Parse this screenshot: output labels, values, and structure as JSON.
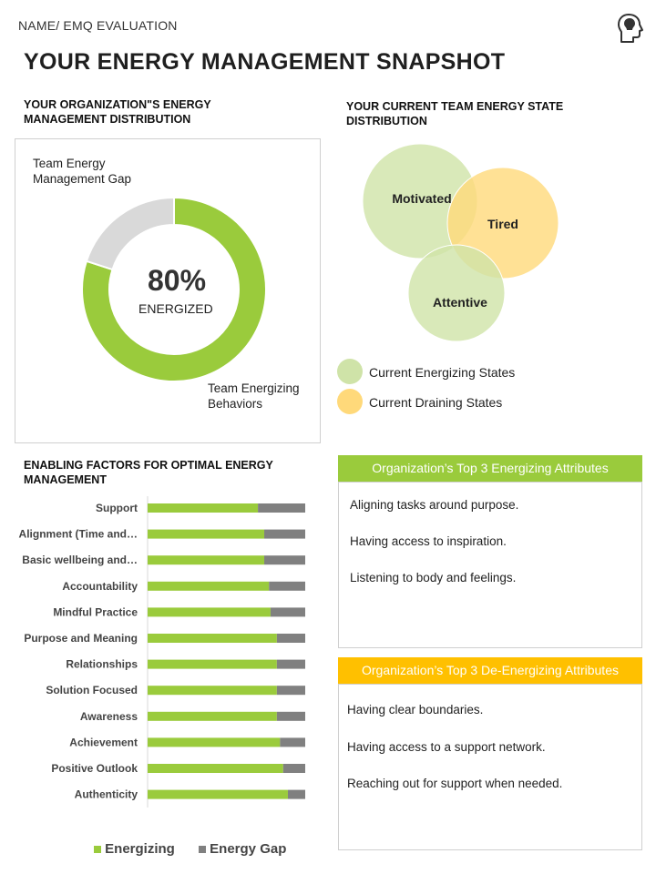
{
  "header": {
    "breadcrumb": "NAME/  EMQ EVALUATION",
    "title": "YOUR ENERGY MANAGEMENT SNAPSHOT",
    "head_icon": "head-profile-icon"
  },
  "colors": {
    "green": "#9ACB3C",
    "gray": "#808080",
    "light_gray": "#D9D9D9",
    "light_green": "#CFE3A8",
    "light_yellow": "#FFD97A",
    "yellow_header": "#FFC000"
  },
  "distribution": {
    "section_title": "YOUR ORGANIZATION\"S ENERGY MANAGEMENT DISTRIBUTION",
    "gap_label": "Team Energy Management Gap",
    "behaviors_label": "Team Energizing Behaviors",
    "percent_text": "80%",
    "center_label": "ENERGIZED"
  },
  "team_state": {
    "section_title": "YOUR CURRENT TEAM ENERGY STATE DISTRIBUTION",
    "legend": [
      {
        "label": "Current Energizing States",
        "color": "#CFE3A8"
      },
      {
        "label": "Current Draining States",
        "color": "#FFD97A"
      }
    ]
  },
  "factors": {
    "section_title": "ENABLING FACTORS FOR OPTIMAL ENERGY MANAGEMENT",
    "legend_energizing": "Energizing",
    "legend_gap": "Energy Gap"
  },
  "energizing_attributes": {
    "header": "Organization’s  Top 3 Energizing Attributes",
    "items": [
      "Aligning tasks around purpose.",
      "Having access to inspiration.",
      "Listening to body and feelings."
    ]
  },
  "deenergizing_attributes": {
    "header": "Organization’s Top 3 De-Energizing Attributes",
    "items": [
      "Having clear boundaries.",
      "Having access to a support network.",
      "Reaching out for support when needed."
    ]
  },
  "chart_data": [
    {
      "type": "pie",
      "title": "YOUR ORGANIZATION\"S ENERGY MANAGEMENT DISTRIBUTION",
      "labels": [
        "Team Energizing Behaviors",
        "Team Energy Management Gap"
      ],
      "values": [
        80,
        20
      ],
      "colors": [
        "#9ACB3C",
        "#D9D9D9"
      ],
      "donut": true,
      "center_text": "80% ENERGIZED"
    },
    {
      "type": "scatter",
      "title": "YOUR CURRENT TEAM ENERGY STATE DISTRIBUTION",
      "note": "Venn-style bubble diagram",
      "bubbles": [
        {
          "label": "Motivated",
          "group": "Current Energizing States",
          "color": "#CFE3A8"
        },
        {
          "label": "Tired",
          "group": "Current Draining States",
          "color": "#FFD97A"
        },
        {
          "label": "Attentive",
          "group": "Current Energizing States",
          "color": "#CFE3A8"
        }
      ],
      "legend": [
        "Current Energizing States",
        "Current Draining States"
      ]
    },
    {
      "type": "bar",
      "orientation": "horizontal",
      "stacked": true,
      "title": "ENABLING FACTORS FOR OPTIMAL ENERGY MANAGEMENT",
      "categories": [
        "Support",
        "Alignment (Time and…",
        "Basic wellbeing and…",
        "Accountability",
        "Mindful Practice",
        "Purpose and Meaning",
        "Relationships",
        "Solution Focused",
        "Awareness",
        "Achievement",
        "Positive Outlook",
        "Authenticity"
      ],
      "series": [
        {
          "name": "Energizing",
          "color": "#9ACB3C",
          "values": [
            70,
            74,
            74,
            77,
            78,
            82,
            82,
            82,
            82,
            84,
            86,
            89
          ]
        },
        {
          "name": "Energy Gap",
          "color": "#808080",
          "values": [
            30,
            26,
            26,
            23,
            22,
            18,
            18,
            18,
            18,
            16,
            14,
            11
          ]
        }
      ],
      "xlim": [
        0,
        100
      ],
      "legend": "bottom"
    }
  ]
}
